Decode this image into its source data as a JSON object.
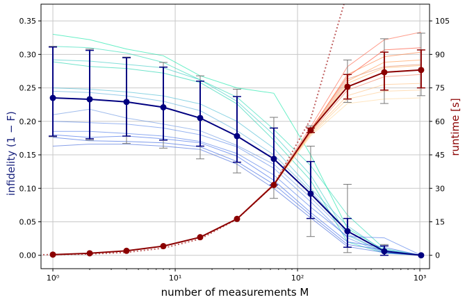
{
  "chart_data": {
    "type": "line",
    "x_scale": "log",
    "xlim": [
      0.8,
      1200
    ],
    "ylim_left": [
      -0.02,
      0.375
    ],
    "ylim_right": [
      -6,
      112.5
    ],
    "grid": true,
    "xlabel": "number of measurements M",
    "ylabel_left": "infidelity (1 − F)",
    "ylabel_right": "runtime [s]",
    "xticks": [
      {
        "value": 1,
        "label": "10⁰"
      },
      {
        "value": 10,
        "label": "10¹"
      },
      {
        "value": 100,
        "label": "10²"
      },
      {
        "value": 1000,
        "label": "10³"
      }
    ],
    "yticks_left": [
      "0.00",
      "0.05",
      "0.10",
      "0.15",
      "0.20",
      "0.25",
      "0.30",
      "0.35"
    ],
    "yticks_right": [
      "0",
      "15",
      "30",
      "45",
      "60",
      "75",
      "90",
      "105"
    ],
    "x": [
      1,
      2,
      4,
      8,
      16,
      32,
      64,
      128,
      256,
      512,
      1024
    ],
    "series": [
      {
        "axis": "left",
        "color": "#000080",
        "values": [
          0.235,
          0.233,
          0.229,
          0.221,
          0.205,
          0.178,
          0.144,
          0.092,
          0.036,
          0.006,
          0.0
        ],
        "err_low": [
          0.178,
          0.174,
          0.178,
          0.172,
          0.163,
          0.139,
          0.105,
          0.055,
          0.012,
          0.0,
          0.0
        ],
        "err_high": [
          0.311,
          0.306,
          0.295,
          0.281,
          0.26,
          0.237,
          0.19,
          0.14,
          0.055,
          0.014,
          0.0
        ],
        "err2_low": [
          0.177,
          0.172,
          0.167,
          0.16,
          0.144,
          0.123,
          0.085,
          0.028,
          0.004,
          0.0,
          0.0
        ],
        "err2_high": [
          0.312,
          0.308,
          0.296,
          0.288,
          0.268,
          0.248,
          0.206,
          0.163,
          0.106,
          0.016,
          0.0
        ]
      },
      {
        "axis": "right",
        "color": "#8b0000",
        "values": [
          0.3,
          0.9,
          2.0,
          4.1,
          8.1,
          16.3,
          31.5,
          56.0,
          75.5,
          82.0,
          83.0
        ],
        "err_low": [
          0.3,
          0.9,
          2.0,
          4.1,
          8.1,
          16.3,
          31.5,
          55.0,
          70.0,
          74.0,
          75.0
        ],
        "err_high": [
          0.3,
          0.9,
          2.0,
          4.1,
          8.1,
          16.3,
          31.5,
          57.0,
          81.0,
          91.0,
          92.0
        ],
        "err2_low": [
          0.3,
          0.9,
          2.0,
          4.1,
          8.1,
          16.3,
          31.5,
          55.0,
          68.5,
          68.0,
          71.5
        ],
        "err2_high": [
          0.3,
          0.9,
          2.0,
          4.1,
          8.1,
          16.3,
          31.5,
          58.0,
          87.5,
          97.0,
          99.5
        ]
      }
    ],
    "individual_runs_infidelity": [
      {
        "color": "#00e5a0",
        "values": [
          0.33,
          0.322,
          0.308,
          0.298,
          0.268,
          0.25,
          0.242,
          0.15,
          0.04,
          0.008,
          0.0
        ]
      },
      {
        "color": "#20d8b0",
        "values": [
          0.312,
          0.31,
          0.302,
          0.288,
          0.262,
          0.236,
          0.188,
          0.134,
          0.06,
          0.01,
          0.0
        ]
      },
      {
        "color": "#30c8c0",
        "values": [
          0.292,
          0.29,
          0.285,
          0.28,
          0.262,
          0.23,
          0.18,
          0.12,
          0.03,
          0.004,
          0.0
        ]
      },
      {
        "color": "#10d0a8",
        "values": [
          0.289,
          0.282,
          0.279,
          0.272,
          0.258,
          0.226,
          0.172,
          0.112,
          0.02,
          0.003,
          0.0
        ]
      },
      {
        "color": "#40b8d0",
        "values": [
          0.25,
          0.248,
          0.244,
          0.238,
          0.226,
          0.2,
          0.16,
          0.1,
          0.044,
          0.006,
          0.0
        ]
      },
      {
        "color": "#50a8d8",
        "values": [
          0.245,
          0.243,
          0.238,
          0.23,
          0.216,
          0.186,
          0.15,
          0.096,
          0.036,
          0.005,
          0.0
        ]
      },
      {
        "color": "#6090e0",
        "values": [
          0.21,
          0.218,
          0.205,
          0.196,
          0.186,
          0.164,
          0.136,
          0.086,
          0.032,
          0.004,
          0.0
        ]
      },
      {
        "color": "#5080e8",
        "values": [
          0.2,
          0.198,
          0.196,
          0.19,
          0.18,
          0.162,
          0.13,
          0.08,
          0.026,
          0.003,
          0.0
        ]
      },
      {
        "color": "#4070e8",
        "values": [
          0.185,
          0.185,
          0.182,
          0.178,
          0.17,
          0.152,
          0.12,
          0.072,
          0.028,
          0.026,
          0.0
        ]
      },
      {
        "color": "#3060e8",
        "values": [
          0.18,
          0.176,
          0.178,
          0.174,
          0.168,
          0.148,
          0.112,
          0.064,
          0.02,
          0.012,
          0.0
        ]
      },
      {
        "color": "#2858e0",
        "values": [
          0.176,
          0.171,
          0.17,
          0.168,
          0.162,
          0.14,
          0.106,
          0.06,
          0.016,
          0.008,
          0.0
        ]
      },
      {
        "color": "#3860d8",
        "values": [
          0.163,
          0.166,
          0.166,
          0.163,
          0.158,
          0.136,
          0.1,
          0.056,
          0.013,
          0.004,
          0.0
        ]
      }
    ],
    "individual_runs_runtime": [
      {
        "color": "#ff6a50",
        "values": [
          0.3,
          0.9,
          2.0,
          4.1,
          8.2,
          16.5,
          32.0,
          57.5,
          84.5,
          96.5,
          100.0
        ]
      },
      {
        "color": "#ff4a30",
        "values": [
          0.3,
          0.9,
          2.0,
          4.1,
          8.1,
          16.3,
          31.5,
          56.5,
          80.0,
          92.0,
          93.0
        ]
      },
      {
        "color": "#ff8040",
        "values": [
          0.3,
          0.9,
          2.0,
          4.1,
          8.1,
          16.3,
          31.5,
          56.0,
          81.0,
          89.0,
          91.0
        ]
      },
      {
        "color": "#ff9a50",
        "values": [
          0.3,
          0.9,
          2.0,
          4.1,
          8.1,
          16.3,
          31.5,
          55.5,
          78.0,
          86.5,
          87.5
        ]
      },
      {
        "color": "#ffb060",
        "values": [
          0.3,
          0.9,
          2.0,
          4.1,
          8.1,
          16.3,
          31.5,
          55.0,
          77.0,
          84.0,
          85.0
        ]
      },
      {
        "color": "#f08060",
        "values": [
          0.3,
          0.9,
          2.0,
          4.1,
          8.1,
          16.3,
          31.5,
          55.0,
          74.0,
          80.0,
          81.0
        ]
      },
      {
        "color": "#ffc080",
        "values": [
          0.3,
          0.9,
          2.0,
          4.1,
          8.1,
          16.3,
          31.5,
          54.5,
          71.5,
          76.5,
          77.0
        ]
      },
      {
        "color": "#ffcc90",
        "values": [
          0.3,
          0.9,
          2.0,
          4.1,
          8.1,
          16.3,
          31.5,
          54.0,
          70.0,
          73.5,
          74.0
        ]
      },
      {
        "color": "#ffd8a0",
        "values": [
          0.3,
          0.9,
          2.0,
          4.1,
          8.1,
          16.3,
          31.5,
          53.5,
          68.0,
          70.0,
          70.5
        ]
      },
      {
        "color": "#e09070",
        "values": [
          0.3,
          0.9,
          2.0,
          4.1,
          8.1,
          16.3,
          31.5,
          56.0,
          79.0,
          84.5,
          85.5
        ]
      }
    ],
    "linear_fit_runtime": {
      "color": "#c06060",
      "style": "dotted",
      "x": [
        0.6,
        1,
        2,
        4,
        8,
        16,
        32,
        64,
        128,
        256
      ],
      "values": [
        0.15,
        0.3,
        0.55,
        1.3,
        3.2,
        7.3,
        16.2,
        31.5,
        61.0,
        118.0
      ]
    }
  }
}
